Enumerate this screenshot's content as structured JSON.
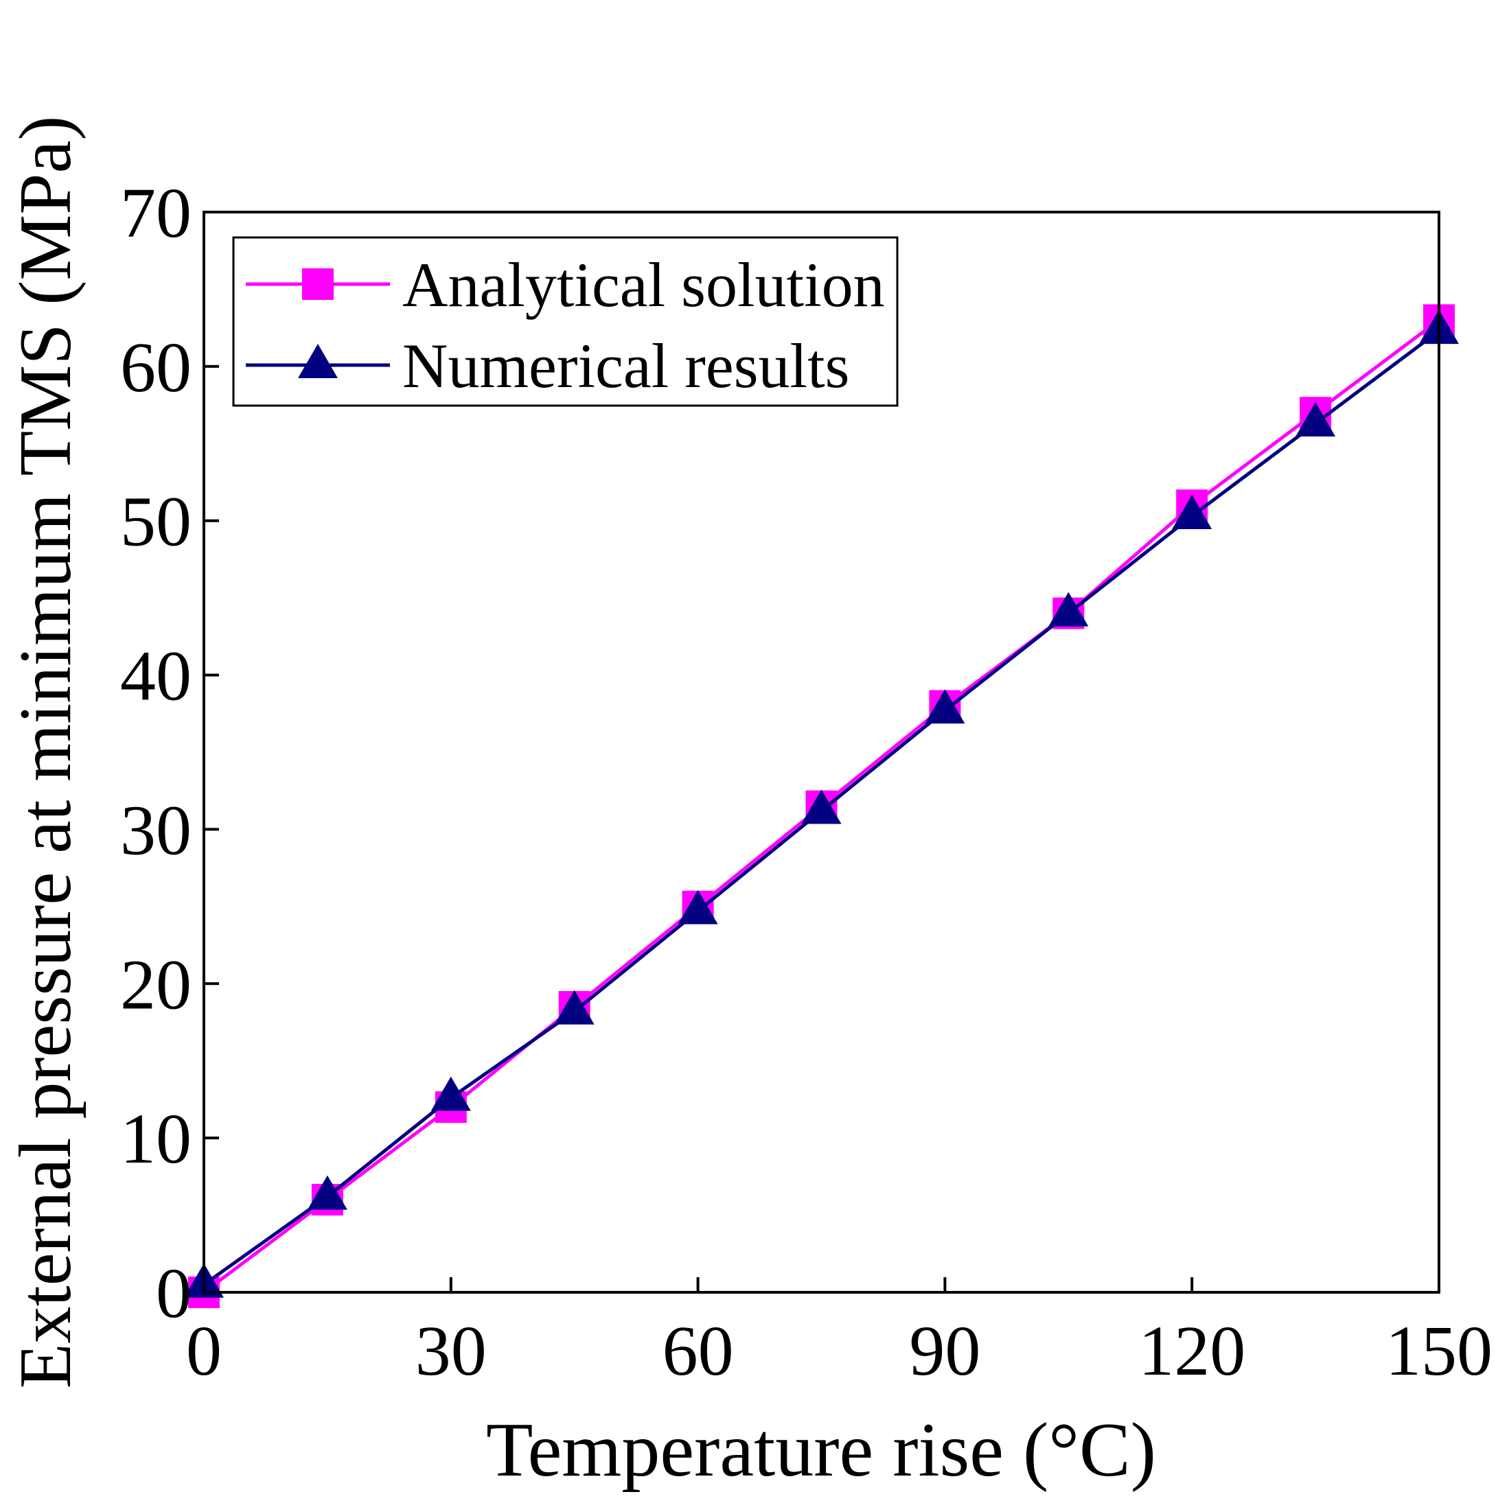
{
  "chart_data": {
    "type": "line",
    "title": "",
    "xlabel": "Temperature rise (°C)",
    "ylabel": "External pressure at minimum TMS (MPa)",
    "xlim": [
      0,
      150
    ],
    "ylim": [
      0,
      70
    ],
    "xticks": [
      0,
      30,
      60,
      90,
      120,
      150
    ],
    "yticks": [
      0,
      10,
      20,
      30,
      40,
      50,
      60,
      70
    ],
    "grid": false,
    "legend_position": "top-left",
    "x": [
      0,
      15,
      30,
      45,
      60,
      75,
      90,
      105,
      120,
      135,
      150
    ],
    "series": [
      {
        "name": "Analytical solution",
        "marker": "square",
        "color": "#ff00ff",
        "values": [
          0,
          6.0,
          12.0,
          18.5,
          25.0,
          31.5,
          38.0,
          44.0,
          51.0,
          57.0,
          63.0
        ]
      },
      {
        "name": "Numerical results",
        "marker": "triangle",
        "color": "#000080",
        "values": [
          0.5,
          6.2,
          12.6,
          18.2,
          24.7,
          31.2,
          37.7,
          44.0,
          50.3,
          56.3,
          62.3
        ]
      }
    ]
  }
}
